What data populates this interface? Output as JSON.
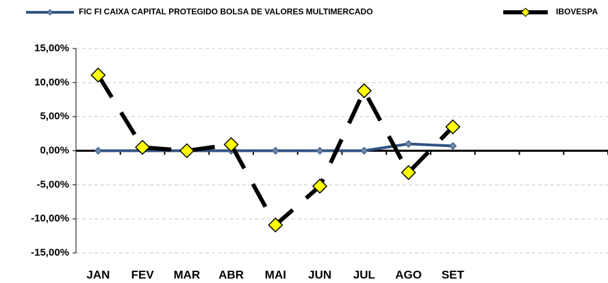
{
  "chart_data": {
    "type": "line",
    "categories": [
      "JAN",
      "FEV",
      "MAR",
      "ABR",
      "MAI",
      "JUN",
      "JUL",
      "AGO",
      "SET",
      null,
      null,
      null
    ],
    "series": [
      {
        "name": "FIC FI CAIXA CAPITAL PROTEGIDO BOLSA DE VALORES MULTIMERCADO",
        "color": "#2f5482",
        "marker_color": "#6f86a8",
        "values": [
          0,
          0,
          0,
          0,
          0,
          0,
          0,
          1.0,
          0.7,
          null,
          null,
          null
        ]
      },
      {
        "name": "IBOVESPA",
        "color": "#000000",
        "marker_color": "#ffff00",
        "values": [
          11.1,
          0.5,
          0.0,
          0.9,
          -10.9,
          -5.2,
          8.8,
          -3.2,
          3.5,
          null,
          null,
          null
        ]
      }
    ],
    "ylim": [
      -15,
      15
    ],
    "yticks": [
      {
        "value": -15,
        "label": "-15,00%"
      },
      {
        "value": -10,
        "label": "-10,00%"
      },
      {
        "value": -5,
        "label": "-5,00%"
      },
      {
        "value": 0,
        "label": "0,00%"
      },
      {
        "value": 5,
        "label": "5,00%"
      },
      {
        "value": 10,
        "label": "10,00%"
      },
      {
        "value": 15,
        "label": "15,00%"
      }
    ],
    "grid": true,
    "legend": "top"
  }
}
